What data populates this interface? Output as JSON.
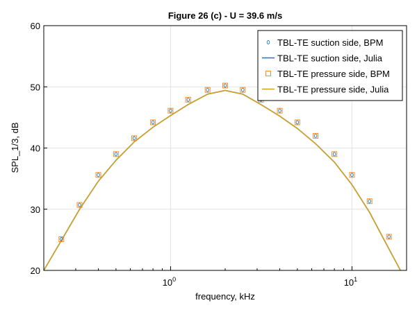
{
  "chart_data": {
    "type": "line",
    "title": "Figure 26 (c) - U = 39.6 m/s",
    "xlabel": "frequency, kHz",
    "ylabel": "SPL_1/3, dB",
    "xscale": "log",
    "xlim": [
      0.2,
      20
    ],
    "ylim": [
      20,
      60
    ],
    "x_ticks": [
      {
        "value": 1,
        "base": "10",
        "exp": "0"
      },
      {
        "value": 10,
        "base": "10",
        "exp": "1"
      }
    ],
    "y_ticks": [
      20,
      30,
      40,
      50,
      60
    ],
    "grid": true,
    "legend_position": "top-right",
    "series": [
      {
        "name": "TBL-TE suction side, BPM",
        "kind": "scatter",
        "marker": "circle",
        "color": "#1f77b4",
        "x": [
          0.25,
          0.315,
          0.4,
          0.5,
          0.63,
          0.8,
          1.0,
          1.25,
          1.6,
          2.0,
          2.5,
          3.15,
          4.0,
          5.0,
          6.3,
          8.0,
          10.0,
          12.5,
          16.0
        ],
        "y": [
          25.1,
          30.7,
          35.6,
          39.0,
          41.6,
          44.2,
          46.1,
          47.9,
          49.5,
          50.2,
          49.5,
          47.9,
          46.1,
          44.2,
          42.0,
          39.0,
          35.6,
          31.3,
          25.5
        ]
      },
      {
        "name": "TBL-TE suction side, Julia",
        "kind": "line",
        "color": "#1f77b4",
        "x": [
          0.2,
          0.25,
          0.315,
          0.4,
          0.5,
          0.63,
          0.8,
          1.0,
          1.25,
          1.6,
          2.0,
          2.5,
          3.15,
          4.0,
          5.0,
          6.3,
          8.0,
          10.0,
          12.5,
          16.0,
          18.5
        ],
        "y": [
          20.0,
          24.9,
          30.0,
          34.6,
          38.0,
          41.0,
          43.4,
          45.3,
          47.1,
          48.8,
          49.4,
          48.8,
          47.1,
          45.2,
          43.2,
          40.7,
          37.7,
          34.0,
          29.5,
          23.5,
          20.0
        ]
      },
      {
        "name": "TBL-TE pressure side, BPM",
        "kind": "scatter",
        "marker": "square",
        "color": "#ff7f0e",
        "x": [
          0.25,
          0.315,
          0.4,
          0.5,
          0.63,
          0.8,
          1.0,
          1.25,
          1.6,
          2.0,
          2.5,
          3.15,
          4.0,
          5.0,
          6.3,
          8.0,
          10.0,
          12.5,
          16.0
        ],
        "y": [
          25.1,
          30.7,
          35.6,
          39.0,
          41.6,
          44.2,
          46.1,
          47.9,
          49.5,
          50.2,
          49.5,
          47.9,
          46.1,
          44.2,
          42.0,
          39.0,
          35.6,
          31.3,
          25.5
        ]
      },
      {
        "name": "TBL-TE pressure side, Julia",
        "kind": "line",
        "color": "#d4a020",
        "x": [
          0.2,
          0.25,
          0.315,
          0.4,
          0.5,
          0.63,
          0.8,
          1.0,
          1.25,
          1.6,
          2.0,
          2.5,
          3.15,
          4.0,
          5.0,
          6.3,
          8.0,
          10.0,
          12.5,
          16.0,
          18.5
        ],
        "y": [
          20.0,
          24.9,
          30.0,
          34.6,
          38.0,
          41.0,
          43.4,
          45.3,
          47.1,
          48.8,
          49.4,
          48.8,
          47.1,
          45.2,
          43.2,
          40.7,
          37.7,
          34.0,
          29.5,
          23.5,
          20.0
        ]
      }
    ]
  }
}
